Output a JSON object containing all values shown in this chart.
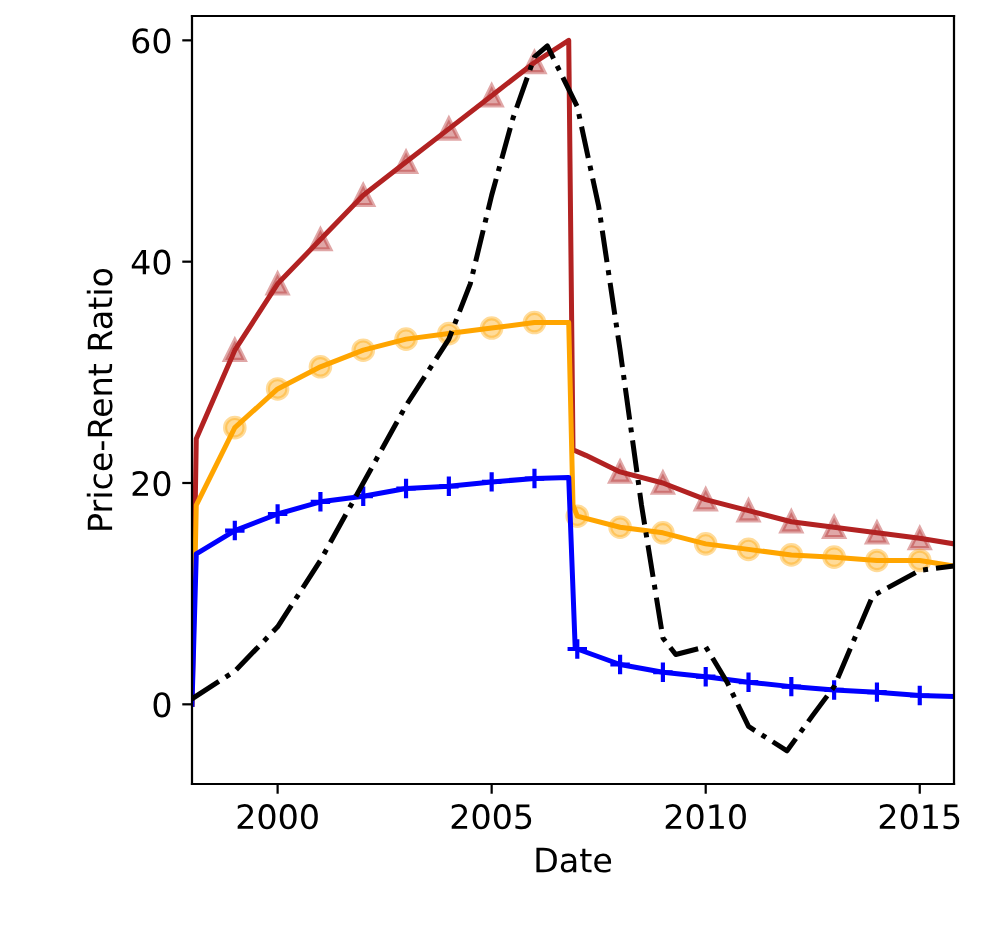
{
  "chart_data": {
    "type": "line",
    "xlabel": "Date",
    "ylabel": "Price-Rent Ratio",
    "xlim": [
      1998,
      2015.8
    ],
    "xticks": [
      2000,
      2005,
      2010,
      2015
    ],
    "ylim": [
      -7.2,
      62.2
    ],
    "yticks": [
      0,
      20,
      40,
      60
    ],
    "grid": false,
    "legend": false,
    "series": [
      {
        "color": "#b22222",
        "marker": "triangle",
        "line_style": "solid",
        "x": [
          1998,
          1998.1,
          1999,
          2000,
          2001,
          2002,
          2003,
          2004,
          2005,
          2006,
          2006.8,
          2006.9,
          2007.2,
          2008,
          2009,
          2010,
          2011,
          2012,
          2013,
          2014,
          2015,
          2015.8
        ],
        "values": [
          0,
          24,
          32,
          38,
          42,
          46,
          49,
          52,
          55,
          58,
          60,
          23,
          22.5,
          21,
          20,
          18.5,
          17.5,
          16.5,
          16,
          15.5,
          15,
          14.5
        ]
      },
      {
        "color": "#ffa500",
        "marker": "circle",
        "line_style": "solid",
        "x": [
          1998,
          1998.1,
          1999,
          2000,
          2001,
          2002,
          2003,
          2004,
          2005,
          2006,
          2006.8,
          2006.9,
          2007,
          2008,
          2009,
          2010,
          2011,
          2012,
          2013,
          2014,
          2015,
          2015.8
        ],
        "values": [
          0,
          18,
          25,
          28.5,
          30.5,
          32,
          33,
          33.5,
          34,
          34.5,
          34.5,
          18,
          17,
          16,
          15.5,
          14.5,
          14,
          13.5,
          13.3,
          13,
          13,
          12.5
        ]
      },
      {
        "color": "#0000ff",
        "marker": "cross",
        "line_style": "solid",
        "x": [
          1998,
          1998.1,
          1999,
          2000,
          2001,
          2002,
          2003,
          2004,
          2005,
          2006,
          2006.8,
          2006.95,
          2007,
          2008,
          2009,
          2010,
          2011,
          2012,
          2013,
          2014,
          2015,
          2015.8
        ],
        "values": [
          0,
          13.6,
          15.7,
          17.2,
          18.3,
          18.8,
          19.5,
          19.7,
          20.1,
          20.4,
          20.5,
          5.2,
          5,
          3.6,
          2.9,
          2.5,
          2,
          1.6,
          1.3,
          1.1,
          0.8,
          0.7
        ]
      },
      {
        "color": "#000000",
        "marker": "none",
        "line_style": "dashdot",
        "x": [
          1998,
          1999,
          2000,
          2001,
          2002,
          2003,
          2004,
          2004.5,
          2005,
          2005.5,
          2006,
          2006.3,
          2007,
          2007.5,
          2008,
          2008.5,
          2009,
          2009.3,
          2010,
          2010.5,
          2011,
          2011.9,
          2012.5,
          2013,
          2013.9,
          2015,
          2015.8
        ],
        "values": [
          0.5,
          3,
          7,
          13,
          20,
          27,
          33,
          38,
          46,
          53,
          58.5,
          59.5,
          54,
          45,
          32,
          18,
          6,
          4.5,
          5.2,
          2,
          -2,
          -4.2,
          -1,
          1.6,
          9.8,
          12.1,
          12.5
        ]
      }
    ]
  }
}
